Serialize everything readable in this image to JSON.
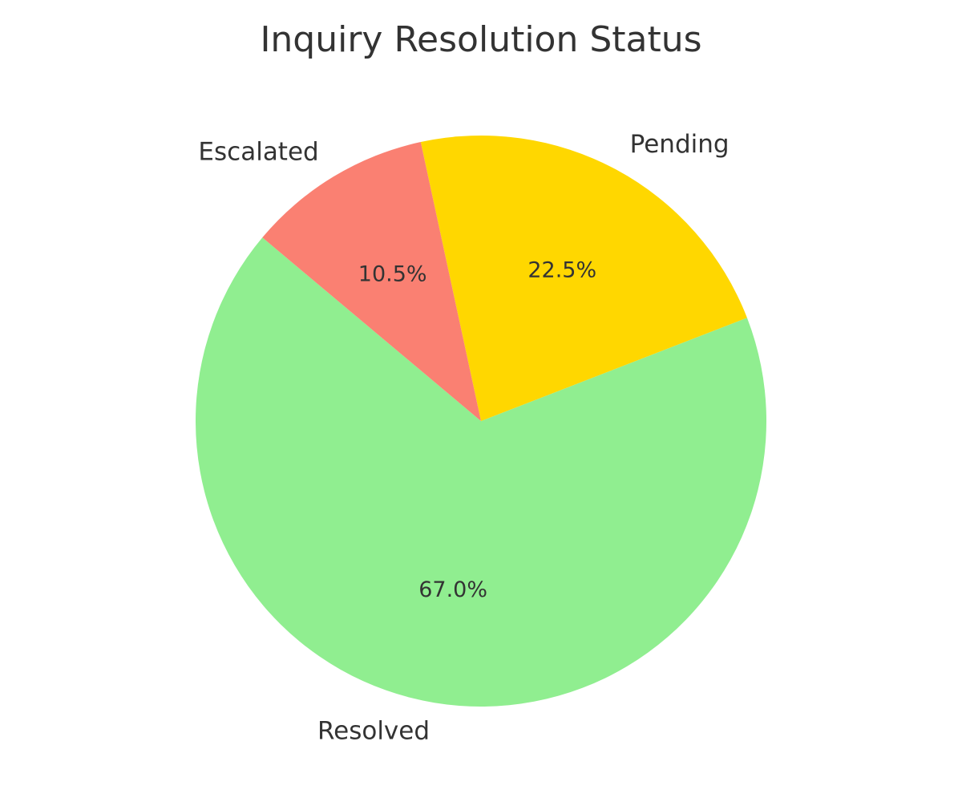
{
  "chart_data": {
    "type": "pie",
    "title": "Inquiry Resolution Status",
    "start_angle_deg": 140,
    "direction": "counterclockwise",
    "slices": [
      {
        "label": "Resolved",
        "value": 67.0,
        "value_label": "67.0%",
        "color": "#90EE90"
      },
      {
        "label": "Pending",
        "value": 22.5,
        "value_label": "22.5%",
        "color": "#FFD700"
      },
      {
        "label": "Escalated",
        "value": 10.5,
        "value_label": "10.5%",
        "color": "#FA8072"
      }
    ],
    "legend": "none"
  }
}
